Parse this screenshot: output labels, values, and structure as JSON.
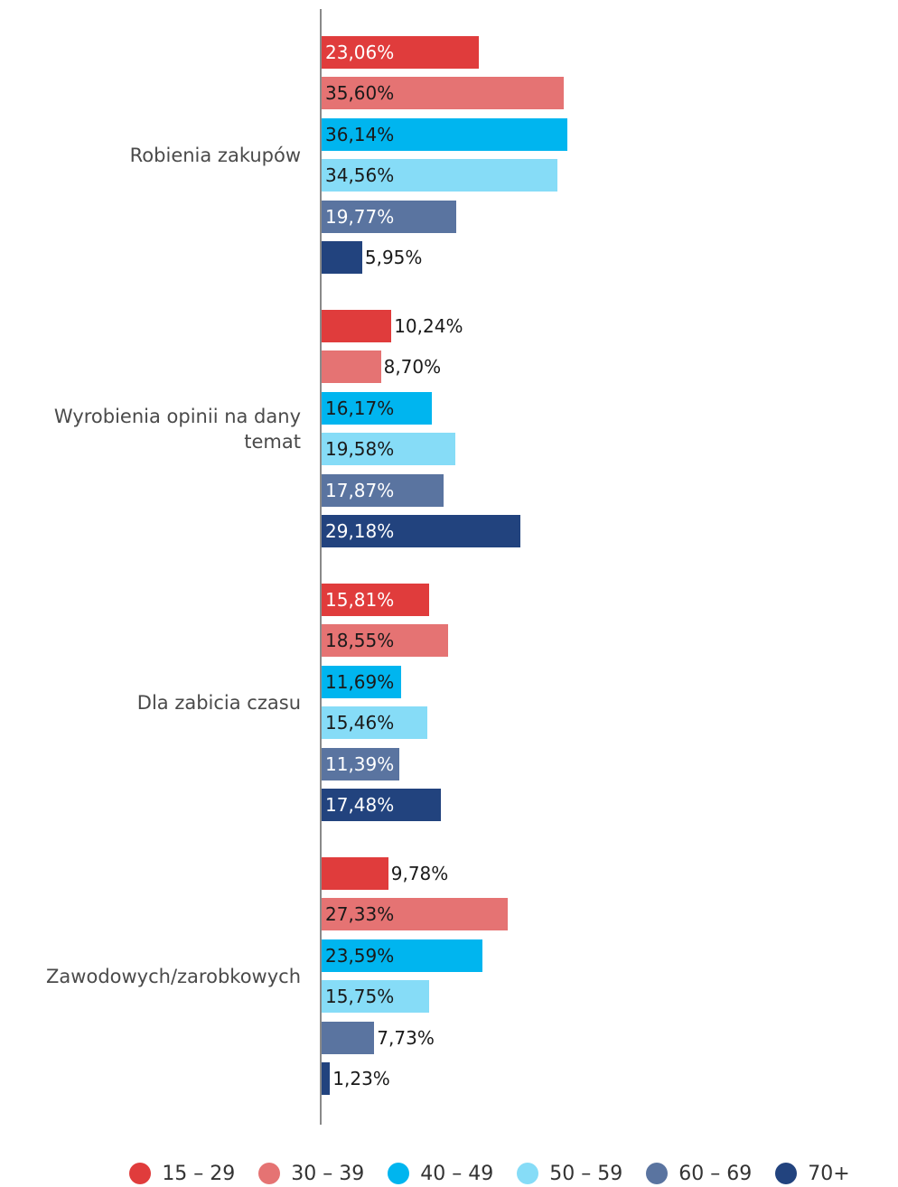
{
  "chart_data": {
    "type": "bar",
    "orientation": "horizontal",
    "categories": [
      "Robienia zakupów",
      "Wyrobienia opinii na dany temat",
      "Dla zabicia czasu",
      "Zawodowych/zarobkowych"
    ],
    "series": [
      {
        "name": "15 – 29",
        "color": "#e03c3c",
        "label_color": "#ffffff",
        "values": [
          23.06,
          10.24,
          15.81,
          9.78
        ],
        "value_labels": [
          "23,06%",
          "10,24%",
          "15,81%",
          "9,78%"
        ]
      },
      {
        "name": "30 – 39",
        "color": "#e57373",
        "label_color": "#1a1a1a",
        "values": [
          35.6,
          8.7,
          18.55,
          27.33
        ],
        "value_labels": [
          "35,60%",
          "8,70%",
          "18,55%",
          "27,33%"
        ]
      },
      {
        "name": "40 – 49",
        "color": "#00b5ef",
        "label_color": "#1a1a1a",
        "values": [
          36.14,
          16.17,
          11.69,
          23.59
        ],
        "value_labels": [
          "36,14%",
          "16,17%",
          "11,69%",
          "23,59%"
        ]
      },
      {
        "name": "50 – 59",
        "color": "#86dcf7",
        "label_color": "#1a1a1a",
        "values": [
          34.56,
          19.58,
          15.46,
          15.75
        ],
        "value_labels": [
          "34,56%",
          "19,58%",
          "15,46%",
          "15,75%"
        ]
      },
      {
        "name": "60 – 69",
        "color": "#5a74a0",
        "label_color": "#ffffff",
        "values": [
          19.77,
          17.87,
          11.39,
          7.73
        ],
        "value_labels": [
          "19,77%",
          "17,87%",
          "11,39%",
          "7,73%"
        ]
      },
      {
        "name": "70+",
        "color": "#22437e",
        "label_color": "#ffffff",
        "values": [
          5.95,
          29.18,
          17.48,
          1.23
        ],
        "value_labels": [
          "5,95%",
          "29,18%",
          "17,48%",
          "1,23%"
        ]
      }
    ],
    "legend": "bottom"
  }
}
